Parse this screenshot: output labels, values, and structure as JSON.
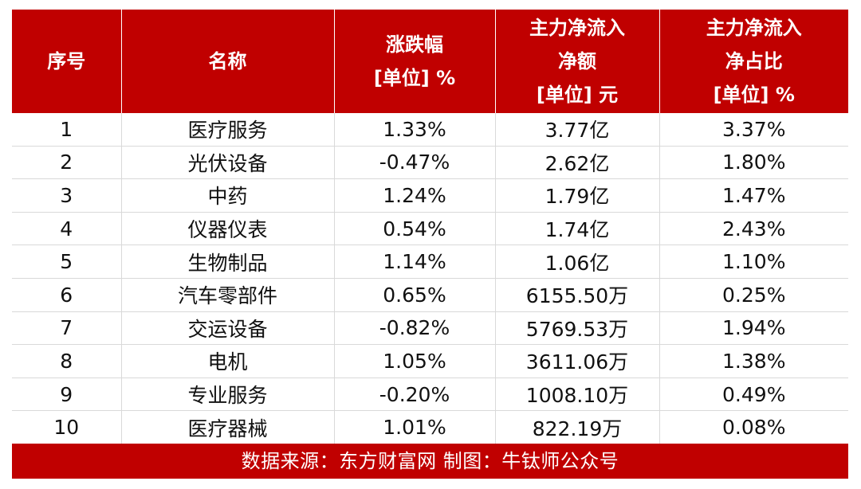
{
  "chart_data": {
    "type": "table",
    "columns": [
      {
        "lines": [
          "序号"
        ]
      },
      {
        "lines": [
          "名称"
        ]
      },
      {
        "lines": [
          "涨跌幅",
          "[单位] %"
        ]
      },
      {
        "lines": [
          "主力净流入",
          "净额",
          "[单位] 元"
        ]
      },
      {
        "lines": [
          "主力净流入",
          "净占比",
          "[单位] %"
        ]
      }
    ],
    "rows": [
      [
        "1",
        "医疗服务",
        "1.33%",
        "3.77亿",
        "3.37%"
      ],
      [
        "2",
        "光伏设备",
        "-0.47%",
        "2.62亿",
        "1.80%"
      ],
      [
        "3",
        "中药",
        "1.24%",
        "1.79亿",
        "1.47%"
      ],
      [
        "4",
        "仪器仪表",
        "0.54%",
        "1.74亿",
        "2.43%"
      ],
      [
        "5",
        "生物制品",
        "1.14%",
        "1.06亿",
        "1.10%"
      ],
      [
        "6",
        "汽车零部件",
        "0.65%",
        "6155.50万",
        "0.25%"
      ],
      [
        "7",
        "交运设备",
        "-0.82%",
        "5769.53万",
        "1.94%"
      ],
      [
        "8",
        "电机",
        "1.05%",
        "3611.06万",
        "1.38%"
      ],
      [
        "9",
        "专业服务",
        "-0.20%",
        "1008.10万",
        "0.49%"
      ],
      [
        "10",
        "医疗器械",
        "1.01%",
        "822.19万",
        "0.08%"
      ]
    ],
    "footer": "数据来源：东方财富网  制图：牛钛师公众号",
    "colors": {
      "header_bg": "#c00000",
      "header_text": "#ffffff",
      "footer_bg": "#c00000",
      "body_text": "#111111",
      "grid": "#d9d9d9"
    }
  }
}
